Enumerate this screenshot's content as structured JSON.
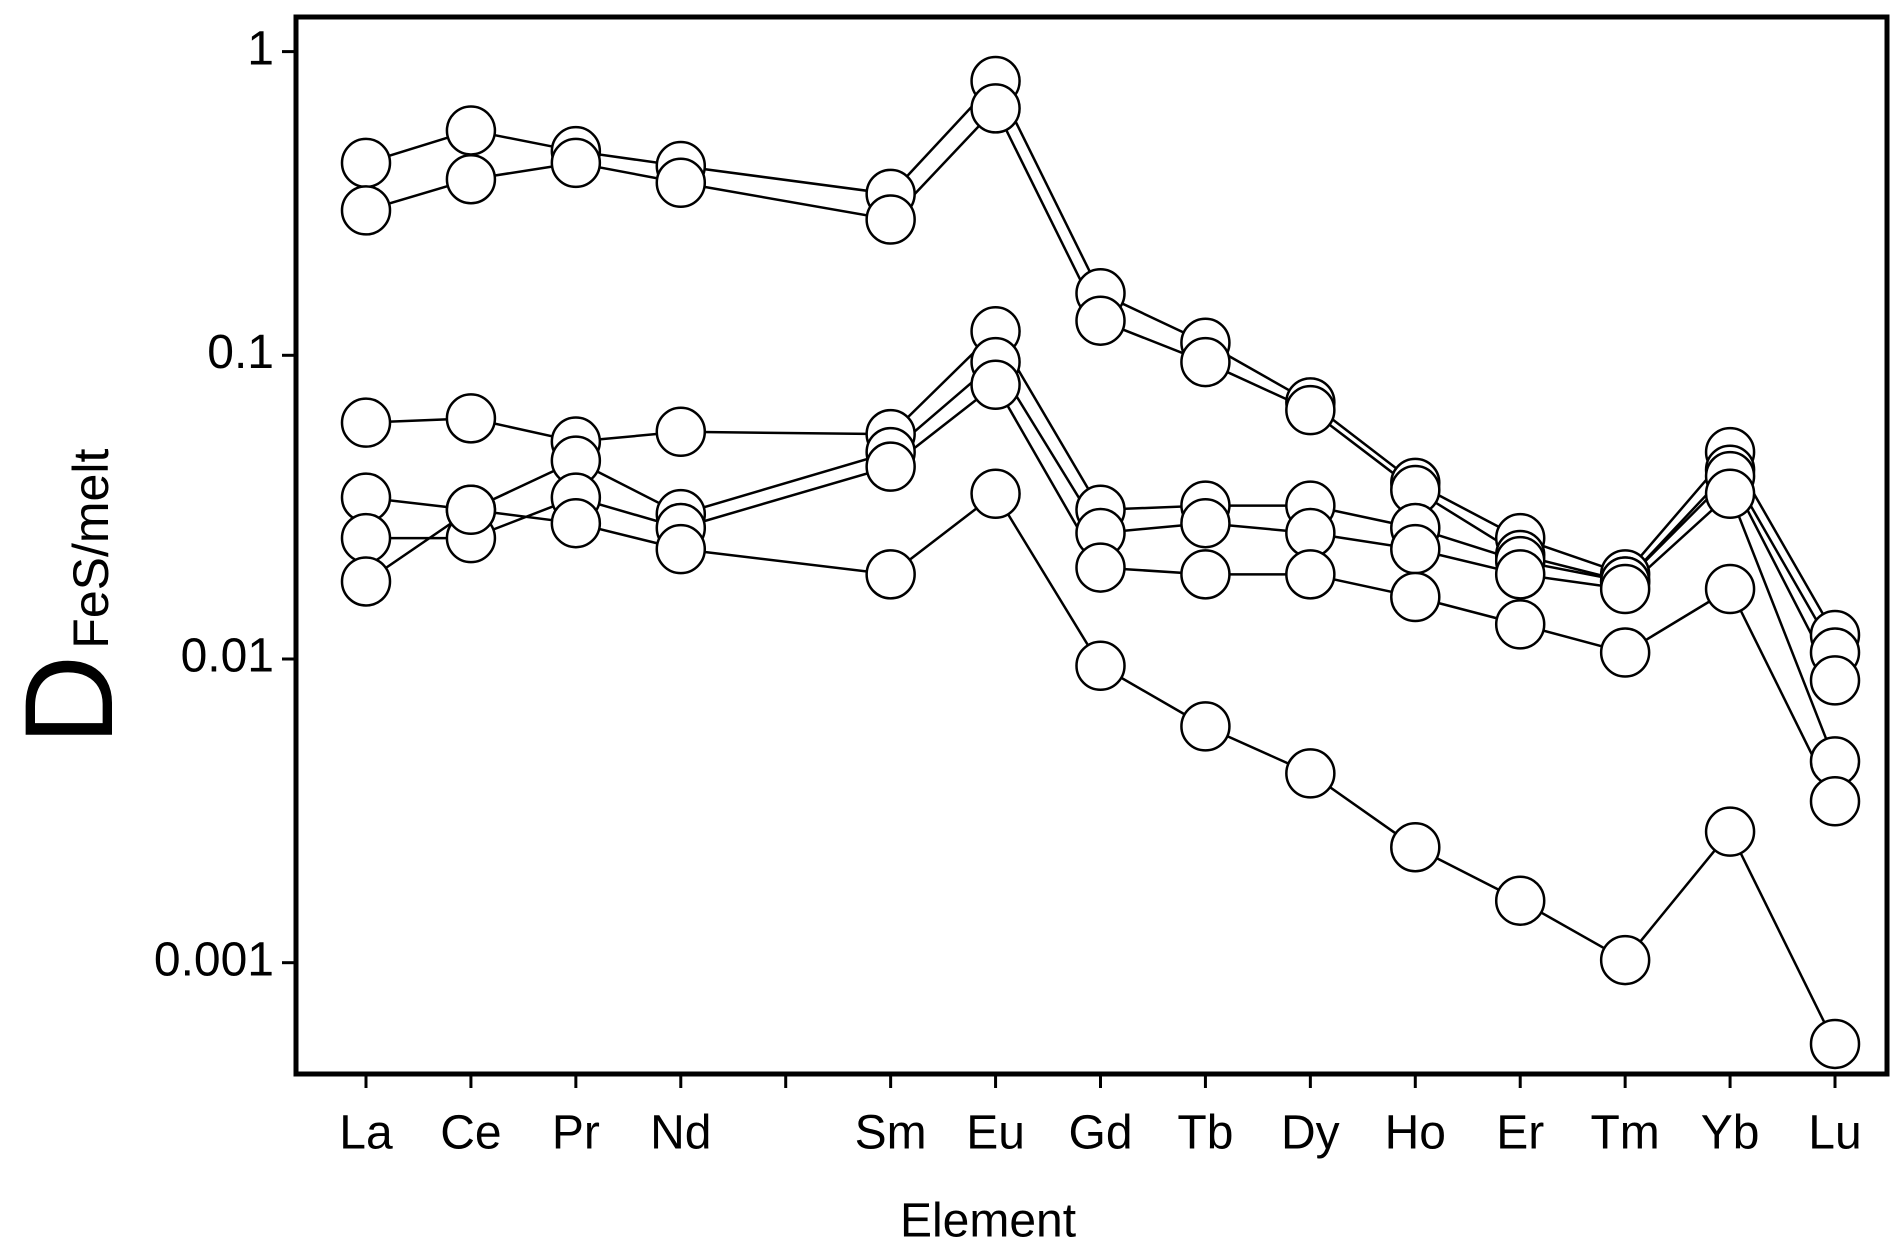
{
  "chart_data": {
    "type": "line",
    "ylabel": "D",
    "ylabel_sub": "FeS/melt",
    "xlabel": "Element",
    "categories": [
      "La",
      "Ce",
      "Pr",
      "Nd",
      null,
      "Sm",
      "Eu",
      "Gd",
      "Tb",
      "Dy",
      "Ho",
      "Er",
      "Tm",
      "Yb",
      "Lu"
    ],
    "log_y": true,
    "ylim": [
      0.00043,
      1.3
    ],
    "yticks": [
      1,
      0.1,
      0.01,
      0.001
    ],
    "series": [
      {
        "color": "#000000",
        "values": [
          0.43,
          0.55,
          0.47,
          0.42,
          null,
          0.34,
          0.8,
          0.16,
          0.11,
          0.07,
          0.038,
          0.025,
          0.019,
          0.048,
          0.012
        ]
      },
      {
        "color": "#000000",
        "values": [
          0.3,
          0.38,
          0.43,
          0.37,
          null,
          0.28,
          0.65,
          0.13,
          0.095,
          0.066,
          0.036,
          0.022,
          0.018,
          0.042,
          0.0105
        ]
      },
      {
        "color": "#000000",
        "values": [
          0.06,
          0.062,
          0.052,
          0.056,
          null,
          0.055,
          0.12,
          0.031,
          0.032,
          0.032,
          0.027,
          0.021,
          0.018,
          0.04,
          0.0085
        ]
      },
      {
        "color": "#000000",
        "values": [
          0.034,
          0.031,
          0.045,
          0.03,
          null,
          0.048,
          0.095,
          0.026,
          0.028,
          0.026,
          0.023,
          0.019,
          0.017,
          0.035,
          0.0046
        ]
      },
      {
        "color": "#000000",
        "values": [
          0.025,
          0.025,
          0.034,
          0.027,
          null,
          0.043,
          0.08,
          0.02,
          0.019,
          0.019,
          0.016,
          0.013,
          0.0105,
          0.017,
          0.0034
        ]
      },
      {
        "color": "#000000",
        "values": [
          0.018,
          0.031,
          0.028,
          0.023,
          null,
          0.019,
          0.035,
          0.0095,
          0.006,
          0.0042,
          0.0024,
          0.0016,
          0.00102,
          0.0027,
          0.00054
        ]
      }
    ]
  }
}
